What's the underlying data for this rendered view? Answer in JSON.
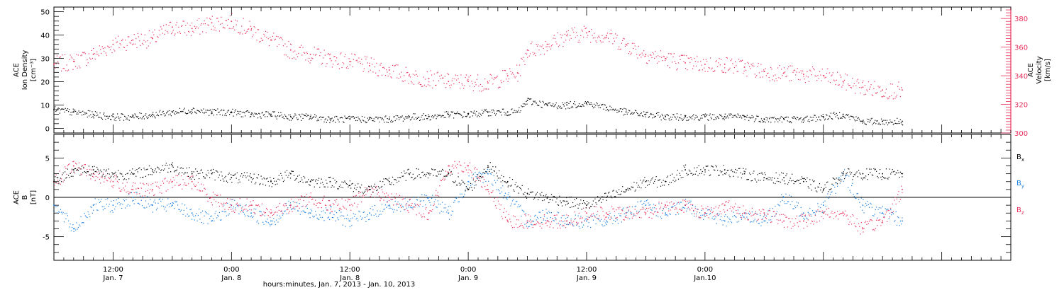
{
  "colors": {
    "density": "#000000",
    "velocity": "#e8305c",
    "bx": "#000000",
    "by": "#1a7fe0",
    "bz": "#e8305c",
    "axis": "#000000"
  },
  "chart_data": [
    {
      "type": "scatter",
      "ylabel_lines": [
        "ACE",
        "Ion Density",
        "[cm⁻³]"
      ],
      "y_ticks": [
        "0",
        "10",
        "20",
        "30",
        "40",
        "50"
      ],
      "ylim": [
        -2,
        52
      ],
      "right_ylabel_lines": [
        "ACE",
        "Velocity",
        "[km/s]"
      ],
      "right_y_ticks": [
        "300",
        "320",
        "340",
        "360",
        "380"
      ],
      "right_ylim": [
        300,
        388
      ],
      "series": [
        {
          "name": "",
          "axis": "left",
          "x_hours": [
            0,
            2,
            4,
            6,
            8,
            10,
            12,
            14,
            16,
            18,
            20,
            22,
            24,
            26,
            28,
            30,
            32,
            34,
            36,
            38,
            40,
            42,
            44,
            46,
            47,
            48,
            50,
            52,
            54,
            56,
            58,
            60,
            62,
            64,
            66,
            68,
            70,
            72,
            74,
            76,
            78,
            80,
            82,
            84,
            86
          ],
          "values": [
            8,
            7,
            6,
            5,
            5,
            6,
            7,
            8,
            7,
            7,
            6,
            6,
            5,
            5,
            4,
            4,
            4,
            4,
            5,
            5,
            6,
            6,
            7,
            7,
            7,
            12,
            10,
            10,
            11,
            9,
            7,
            6,
            5,
            5,
            5,
            5,
            5,
            4,
            4,
            4,
            5,
            6,
            3,
            3,
            3
          ]
        },
        {
          "name": "",
          "axis": "right",
          "x_hours": [
            0,
            2,
            4,
            6,
            8,
            10,
            12,
            14,
            16,
            18,
            20,
            22,
            24,
            26,
            28,
            30,
            32,
            34,
            36,
            38,
            40,
            42,
            44,
            46,
            47,
            48,
            50,
            52,
            54,
            56,
            58,
            60,
            62,
            64,
            66,
            68,
            70,
            72,
            74,
            76,
            78,
            80,
            82,
            84,
            86
          ],
          "values": [
            348,
            350,
            355,
            362,
            365,
            366,
            374,
            373,
            377,
            378,
            372,
            365,
            358,
            355,
            352,
            350,
            347,
            344,
            340,
            338,
            336,
            336,
            335,
            340,
            342,
            358,
            362,
            368,
            370,
            368,
            362,
            355,
            352,
            349,
            348,
            348,
            346,
            343,
            342,
            341,
            340,
            336,
            332,
            330,
            330
          ]
        }
      ]
    },
    {
      "type": "scatter",
      "ylabel_lines": [
        "ACE",
        "B",
        "[nT]"
      ],
      "y_ticks": [
        "-5",
        "0",
        "5"
      ],
      "ylim": [
        -8,
        8
      ],
      "legend": [
        "B",
        "B",
        "B"
      ],
      "legend_subscripts": [
        "x",
        "y",
        "z"
      ],
      "x_tick_labels": [
        [
          "12:00",
          "Jan. 7"
        ],
        [
          "0:00",
          "Jan. 8"
        ],
        [
          "12:00",
          "Jan. 8"
        ],
        [
          "0:00",
          "Jan. 9"
        ],
        [
          "12:00",
          "Jan. 9"
        ],
        [
          "0:00",
          "Jan.10"
        ]
      ],
      "x_tick_hours": [
        6,
        18,
        30,
        42,
        54,
        66
      ],
      "xlim_hours": [
        0,
        97
      ],
      "xlabel": "hours:minutes, Jan.  7, 2013 - Jan. 10, 2013",
      "series": [
        {
          "name": "B",
          "subscript": "x",
          "x_hours": [
            0,
            2,
            4,
            6,
            8,
            10,
            12,
            14,
            16,
            18,
            20,
            22,
            24,
            26,
            28,
            30,
            32,
            34,
            36,
            38,
            40,
            42,
            44,
            46,
            48,
            50,
            52,
            54,
            56,
            58,
            60,
            62,
            64,
            66,
            68,
            70,
            72,
            74,
            76,
            78,
            80,
            82,
            84,
            86
          ],
          "values": [
            2,
            3.5,
            3.5,
            3,
            3,
            3.5,
            4,
            3,
            3,
            2.5,
            2.5,
            2,
            3,
            2,
            2,
            1.5,
            1,
            2,
            3,
            3,
            3,
            1,
            4,
            2,
            0.5,
            0,
            -0.5,
            -1,
            0,
            1,
            2,
            2,
            3.5,
            3.5,
            3.5,
            3,
            2.5,
            2.5,
            2,
            1,
            3,
            3,
            3,
            3
          ]
        },
        {
          "name": "B",
          "subscript": "y",
          "x_hours": [
            0,
            2,
            4,
            6,
            8,
            10,
            12,
            14,
            16,
            18,
            20,
            22,
            24,
            26,
            28,
            30,
            32,
            34,
            36,
            38,
            40,
            42,
            44,
            46,
            48,
            50,
            52,
            54,
            56,
            58,
            60,
            62,
            64,
            66,
            68,
            70,
            72,
            74,
            76,
            78,
            80,
            82,
            84,
            86
          ],
          "values": [
            -1,
            -4,
            -1,
            -1,
            0,
            -1,
            -1,
            -2,
            -3,
            -1,
            -2,
            -3,
            -1,
            -2,
            -2,
            -3,
            -2,
            -1,
            -1,
            0,
            -2,
            2,
            3,
            0,
            -3,
            -2,
            -3,
            -3,
            -3,
            -2,
            -1,
            -2,
            -1,
            -2,
            -3,
            -2,
            -3,
            0,
            -2,
            -1,
            3,
            -1,
            -2,
            -3
          ]
        },
        {
          "name": "B",
          "subscript": "z",
          "x_hours": [
            0,
            2,
            4,
            6,
            8,
            10,
            12,
            14,
            16,
            18,
            20,
            22,
            24,
            26,
            28,
            30,
            32,
            34,
            36,
            38,
            40,
            42,
            44,
            46,
            48,
            50,
            52,
            54,
            56,
            58,
            60,
            62,
            64,
            66,
            68,
            70,
            72,
            74,
            76,
            78,
            80,
            82,
            84,
            86
          ],
          "values": [
            2,
            4,
            3,
            2,
            1,
            1,
            2,
            2,
            0,
            -1,
            -1,
            -2,
            -1,
            0,
            -1,
            -1,
            1,
            0,
            -1,
            -2,
            4,
            4,
            1,
            -3,
            -3,
            -3,
            -3,
            -2,
            -2,
            -2,
            -2,
            -1,
            -1,
            -2,
            -1,
            -2,
            -2,
            -3,
            -3,
            -2,
            -2,
            -4,
            -3,
            1
          ]
        }
      ]
    }
  ]
}
